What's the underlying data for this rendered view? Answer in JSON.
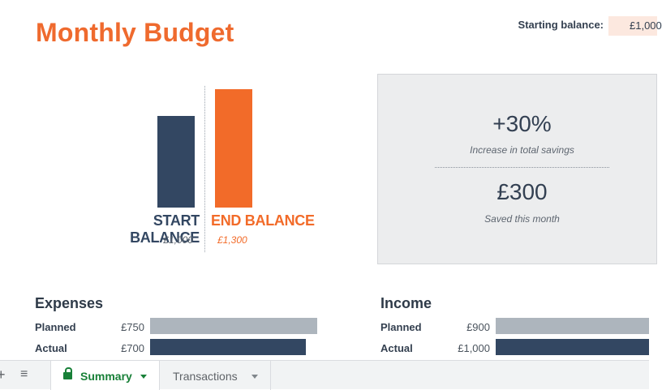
{
  "title": "Monthly Budget",
  "starting_balance": {
    "label": "Starting balance:",
    "value": "£1,000"
  },
  "balance_chart": {
    "start": {
      "label": "START BALANCE",
      "value_text": "£1,000",
      "value": 1000,
      "color": "#334762"
    },
    "end": {
      "label": "END BALANCE",
      "value_text": "£1,300",
      "value": 1300,
      "color": "#f26b29"
    }
  },
  "stats": {
    "increase": {
      "value": "+30%",
      "caption": "Increase in total savings"
    },
    "saved": {
      "value": "£300",
      "caption": "Saved this month"
    }
  },
  "expenses": {
    "title": "Expenses",
    "rows": [
      {
        "label": "Planned",
        "value_text": "£750",
        "value": 750
      },
      {
        "label": "Actual",
        "value_text": "£700",
        "value": 700
      }
    ]
  },
  "income": {
    "title": "Income",
    "rows": [
      {
        "label": "Planned",
        "value_text": "£900",
        "value": 900
      },
      {
        "label": "Actual",
        "value_text": "£1,000",
        "value": 1000
      }
    ]
  },
  "sheet_tabs": {
    "add_icon": "plus-icon",
    "list_icon": "menu-icon",
    "tabs": [
      {
        "label": "Summary",
        "active": true,
        "locked": true
      },
      {
        "label": "Transactions",
        "active": false,
        "locked": false
      }
    ]
  },
  "colors": {
    "accent": "#ef6a2e",
    "navy": "#334762",
    "planned_bar": "#adb5bd",
    "active_tab": "#188038"
  }
}
